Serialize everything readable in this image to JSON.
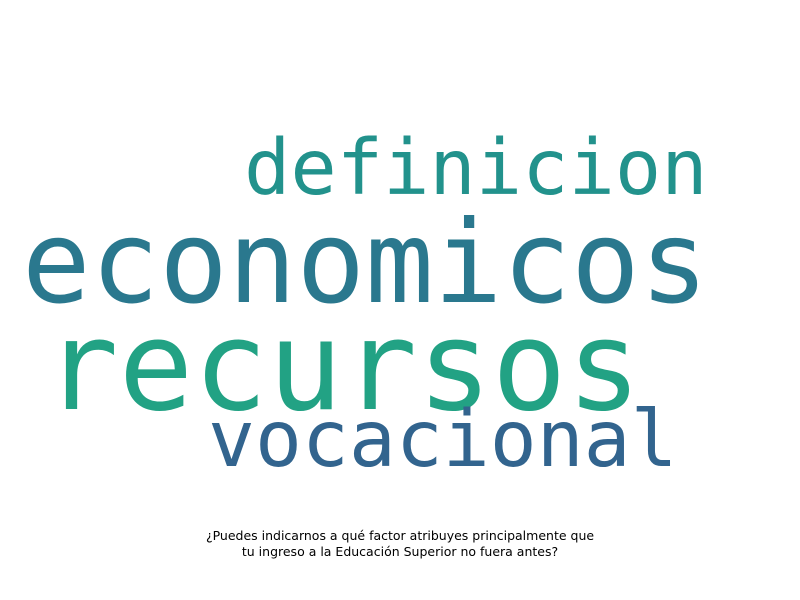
{
  "wordcloud": {
    "words": [
      {
        "text": "definicion",
        "color": "#22928c"
      },
      {
        "text": "economicos",
        "color": "#2a788e"
      },
      {
        "text": "recursos",
        "color": "#22a284"
      },
      {
        "text": "vocacional",
        "color": "#32648e"
      }
    ]
  },
  "caption": {
    "line1": "¿Puedes indicarnos a qué factor atribuyes principalmente que",
    "line2": "tu ingreso a la Educación Superior no fuera antes?"
  }
}
